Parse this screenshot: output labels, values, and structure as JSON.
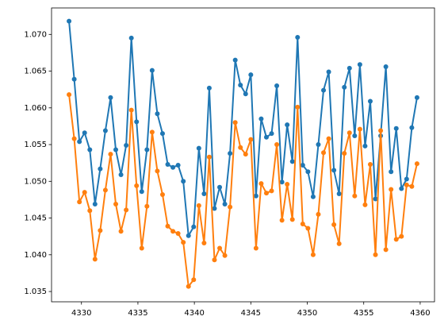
{
  "chart_data": {
    "type": "line",
    "x": [
      4328.9,
      4329.36,
      4329.82,
      4330.28,
      4330.74,
      4331.2,
      4331.66,
      4332.12,
      4332.58,
      4333.04,
      4333.5,
      4333.96,
      4334.42,
      4334.88,
      4335.34,
      4335.8,
      4336.26,
      4336.72,
      4337.18,
      4337.64,
      4338.1,
      4338.56,
      4339.02,
      4339.48,
      4339.94,
      4340.4,
      4340.86,
      4341.32,
      4341.78,
      4342.24,
      4342.7,
      4343.16,
      4343.62,
      4344.08,
      4344.54,
      4345.0,
      4345.46,
      4345.92,
      4346.38,
      4346.84,
      4347.3,
      4347.76,
      4348.22,
      4348.68,
      4349.14,
      4349.6,
      4350.06,
      4350.52,
      4350.98,
      4351.44,
      4351.9,
      4352.36,
      4352.82,
      4353.28,
      4353.74,
      4354.2,
      4354.66,
      4355.12,
      4355.58,
      4356.04,
      4356.5,
      4356.96,
      4357.42,
      4357.88,
      4358.34,
      4358.8,
      4359.26,
      4359.72
    ],
    "series": [
      {
        "color": "#1f77b4",
        "values": [
          1.0718,
          1.0639,
          1.0554,
          1.0566,
          1.0543,
          1.0469,
          1.0517,
          1.0569,
          1.0614,
          1.0543,
          1.0509,
          1.0549,
          1.0695,
          1.0581,
          1.0486,
          1.0543,
          1.0651,
          1.0592,
          1.0565,
          1.0523,
          1.0519,
          1.0522,
          1.05,
          1.0426,
          1.0438,
          1.0545,
          1.0483,
          1.0627,
          1.0463,
          1.0492,
          1.0469,
          1.0538,
          1.0665,
          1.0631,
          1.0619,
          1.0645,
          1.048,
          1.0585,
          1.056,
          1.0565,
          1.063,
          1.0499,
          1.0577,
          1.0527,
          1.0696,
          1.0522,
          1.0513,
          1.0479,
          1.055,
          1.0624,
          1.0649,
          1.0515,
          1.0483,
          1.0628,
          1.0654,
          1.0562,
          1.0659,
          1.0548,
          1.0609,
          1.0476,
          1.0562,
          1.0656,
          1.0513,
          1.0572,
          1.049,
          1.0503,
          1.0573,
          1.0614
        ]
      },
      {
        "color": "#ff7f0e",
        "values": [
          1.0618,
          1.0558,
          1.0472,
          1.0485,
          1.046,
          1.0394,
          1.0433,
          1.0488,
          1.0537,
          1.0469,
          1.0432,
          1.0461,
          1.0597,
          1.0494,
          1.0409,
          1.0466,
          1.0567,
          1.0514,
          1.0482,
          1.0439,
          1.0432,
          1.0429,
          1.0417,
          1.0357,
          1.0366,
          1.0467,
          1.0416,
          1.0533,
          1.0393,
          1.0409,
          1.0399,
          1.0465,
          1.058,
          1.0546,
          1.0537,
          1.0557,
          1.0409,
          1.0497,
          1.0484,
          1.0487,
          1.055,
          1.0447,
          1.0496,
          1.0448,
          1.0601,
          1.0442,
          1.0436,
          1.04,
          1.0455,
          1.0539,
          1.0558,
          1.0441,
          1.0415,
          1.0538,
          1.0566,
          1.048,
          1.0571,
          1.0468,
          1.0523,
          1.04,
          1.0569,
          1.0407,
          1.0489,
          1.0421,
          1.0425,
          1.0495,
          1.0493,
          1.0524
        ]
      }
    ],
    "xlim": [
      4327.35,
      4361.27
    ],
    "xticks": [
      4330,
      4335,
      4340,
      4345,
      4350,
      4355,
      4360
    ],
    "ylim": [
      1.0336,
      1.0736
    ],
    "yticks": [
      1.035,
      {
        "value": 1.04,
        "label": "1.040"
      },
      1.045,
      {
        "value": 1.05,
        "label": "1.050"
      },
      1.055,
      {
        "value": 1.06,
        "label": "1.060"
      },
      1.065,
      {
        "value": 1.07,
        "label": "1.070"
      }
    ]
  }
}
